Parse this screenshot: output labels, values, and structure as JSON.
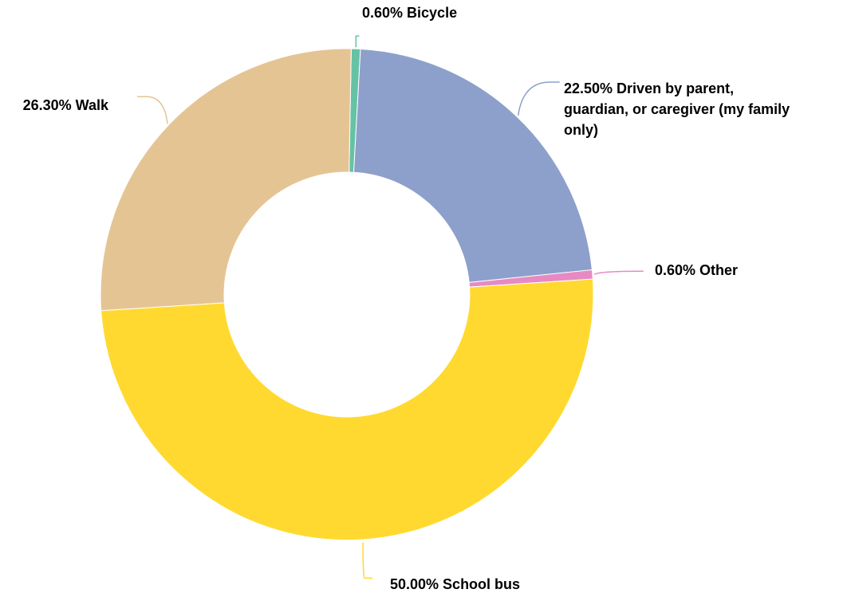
{
  "chart_data": {
    "type": "pie",
    "donut": true,
    "title": "",
    "legend": "none",
    "slices": [
      {
        "label": "Bicycle",
        "value": 0.6,
        "value_label": "0.60%",
        "color": "#66c2a5",
        "label_lines": [
          "0.60% Bicycle"
        ]
      },
      {
        "label": "Driven by parent, guardian, or caregiver (my family only)",
        "value": 22.5,
        "value_label": "22.50%",
        "color": "#8da0cb",
        "label_lines": [
          "22.50% Driven by parent,",
          "guardian, or caregiver (my family",
          "only)"
        ]
      },
      {
        "label": "Other",
        "value": 0.6,
        "value_label": "0.60%",
        "color": "#e78ac3",
        "label_lines": [
          "0.60% Other"
        ]
      },
      {
        "label": "School bus",
        "value": 50.0,
        "value_label": "50.00%",
        "color": "#ffd92f",
        "label_lines": [
          "50.00% School bus"
        ]
      },
      {
        "label": "Walk",
        "value": 26.3,
        "value_label": "26.30%",
        "color": "#e5c494",
        "label_lines": [
          "26.30% Walk"
        ]
      }
    ]
  }
}
